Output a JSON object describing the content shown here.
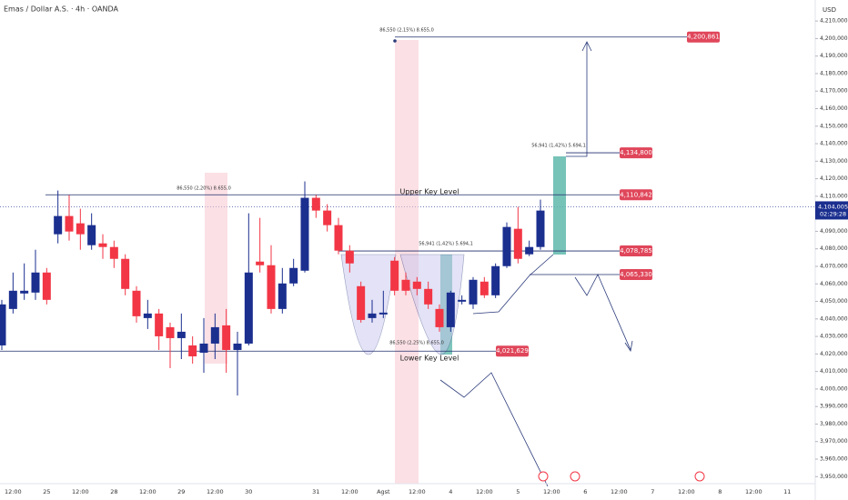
{
  "chart_data": {
    "type": "candlestick",
    "title": "Emas / Dollar A.S. · 4h · OANDA",
    "currency": "USD",
    "up_color": "#1b2f8f",
    "down_color": "#f23645",
    "open": [
      4024880,
      4045680,
      4054520,
      4055040,
      4066480,
      4088320,
      4098720,
      4094560,
      4082080,
      4083120,
      4081040,
      4074280,
      4056080,
      4040480,
      4043080,
      4035280,
      4029040,
      4024880,
      4020720,
      4025920,
      4036320,
      4022280,
      4025920,
      4072720,
      4070640,
      4045680,
      4060240,
      4067520,
      4109120,
      4101840,
      4093520,
      4078960,
      4058680,
      4040480,
      4042560,
      4073240,
      4062320,
      4061280,
      4057120,
      4045680,
      4035280,
      4049840,
      4048280,
      4061280,
      4053480,
      4070120,
      4091440,
      4076880,
      4081040
    ],
    "high": [
      4050880,
      4066480,
      4071680,
      4079480,
      4069080,
      4113280,
      4110680,
      4102880,
      4100280,
      4088320,
      4084680,
      4076880,
      4058680,
      4050880,
      4045680,
      4037880,
      4043080,
      4030080,
      4040480,
      4043080,
      4045680,
      4032680,
      4100280,
      4097680,
      4082080,
      4069080,
      4074280,
      4118480,
      4110680,
      4105480,
      4097680,
      4082080,
      4061280,
      4050880,
      4056080,
      4075320,
      4066480,
      4063880,
      4061280,
      4048280,
      4056080,
      4053480,
      4063880,
      4063880,
      4071680,
      4095080,
      4103920,
      4084680,
      4108080
    ],
    "low": [
      4022280,
      4043080,
      4050880,
      4050880,
      4048280,
      4083120,
      4084680,
      4079480,
      4079480,
      4074280,
      4069080,
      4053480,
      4037880,
      4034240,
      4022280,
      4011880,
      4017080,
      4014480,
      4009280,
      4017080,
      4009280,
      3996280,
      4024880,
      4066480,
      4043080,
      4043080,
      4058680,
      4066480,
      4097680,
      4089880,
      4076880,
      4066480,
      4037880,
      4037880,
      4040480,
      4053480,
      4053480,
      4053480,
      4045680,
      4032680,
      4032680,
      4048280,
      4045680,
      4051920,
      4051920,
      4069080,
      4071680,
      4075840,
      4079480
    ],
    "close": [
      4048280,
      4056080,
      4056080,
      4066480,
      4050880,
      4098720,
      4089880,
      4088320,
      4093520,
      4081040,
      4074280,
      4057120,
      4041520,
      4043080,
      4030080,
      4029040,
      4032680,
      4018640,
      4025920,
      4035280,
      4022280,
      4025920,
      4066480,
      4070640,
      4045680,
      4060240,
      4069080,
      4109120,
      4101840,
      4093520,
      4078960,
      4071680,
      4039440,
      4043080,
      4043600,
      4056080,
      4056080,
      4057120,
      4048280,
      4035280,
      4055040,
      4050880,
      4062320,
      4053480,
      4070120,
      4092480,
      4074280,
      4081040,
      4101840
    ],
    "categories": [
      "12:00",
      "25",
      "12:00",
      "28",
      "12:00",
      "29",
      "12:00",
      "30",
      null,
      "31",
      "12:00",
      "Agst",
      "12:00",
      "4",
      "12:00",
      "5",
      "12:00",
      "6",
      "12:00",
      "7",
      "12:00",
      "8",
      "12:00",
      "11"
    ],
    "ylim": [
      3946000,
      4222000
    ],
    "yticks": [
      {
        "value": 3950000,
        "label": "3,950,000"
      },
      {
        "value": 3960000,
        "label": "3,960,000"
      },
      {
        "value": 3970000,
        "label": "3,970,000"
      },
      {
        "value": 3980000,
        "label": "3,980,000"
      },
      {
        "value": 3990000,
        "label": "3,990,000"
      },
      {
        "value": 4000000,
        "label": "4,000,000"
      },
      {
        "value": 4010000,
        "label": "4,010,000"
      },
      {
        "value": 4020000,
        "label": "4,020,000"
      },
      {
        "value": 4030000,
        "label": "4,030,000"
      },
      {
        "value": 4040000,
        "label": "4,040,000"
      },
      {
        "value": 4050000,
        "label": "4,050,000"
      },
      {
        "value": 4060000,
        "label": "4,060,000"
      },
      {
        "value": 4070000,
        "label": "4,070,000"
      },
      {
        "value": 4080000,
        "label": "4,080,000"
      },
      {
        "value": 4090000,
        "label": "4,090,000"
      },
      {
        "value": 4100000,
        "label": "4,100,000"
      },
      {
        "value": 4110000,
        "label": "4,110,000"
      },
      {
        "value": 4120000,
        "label": "4,120,000"
      },
      {
        "value": 4130000,
        "label": "4,130,000"
      },
      {
        "value": 4140000,
        "label": "4,140,000"
      },
      {
        "value": 4150000,
        "label": "4,150,000"
      },
      {
        "value": 4160000,
        "label": "4,160,000"
      },
      {
        "value": 4170000,
        "label": "4,170,000"
      },
      {
        "value": 4180000,
        "label": "4,180,000"
      },
      {
        "value": 4190000,
        "label": "4,190,000"
      },
      {
        "value": 4200000,
        "label": "4,200,000"
      },
      {
        "value": 4210000,
        "label": "4,210,000"
      }
    ],
    "levels": [
      {
        "value": 4200861,
        "label": "4,200,861"
      },
      {
        "value": 4134800,
        "label": "4,134,800"
      },
      {
        "value": 4110842,
        "label": "4,110,842"
      },
      {
        "value": 4078785,
        "label": "4,078,785"
      },
      {
        "value": 4065330,
        "label": "4,065,330"
      },
      {
        "value": 4021629,
        "label": "4,021,629"
      }
    ],
    "last_price": {
      "value": 4104005,
      "label": "4,104,005"
    },
    "countdown": "02:29:28",
    "annotations": [
      "86,550 (2,15%) 8.655,0",
      "86,550 (2,20%) 8.655,0",
      "56,941 (1,42%) 5.694,1",
      "56,941 (1,42%) 5.694,1",
      "86,550 (2,25%) 8.655,0",
      "Upper Key Level",
      "Lower Key Level"
    ]
  }
}
